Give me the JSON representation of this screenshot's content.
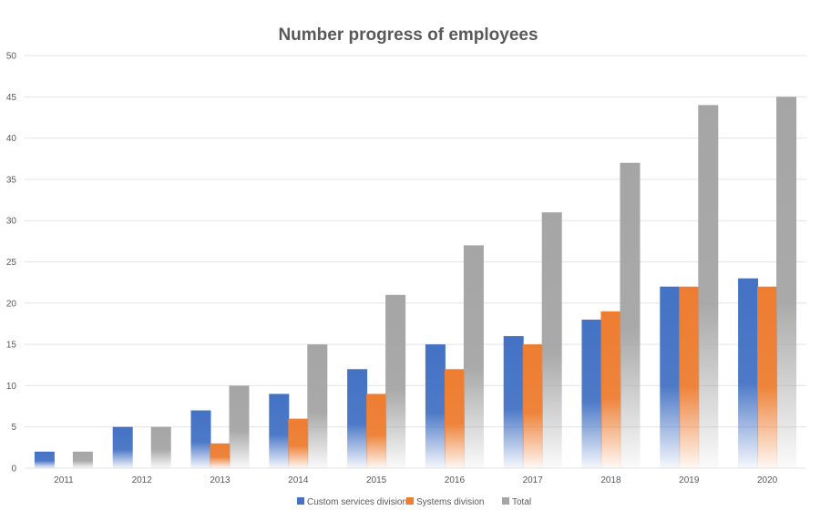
{
  "chart_data": {
    "type": "bar",
    "title": "Number progress of employees",
    "xlabel": "",
    "ylabel": "",
    "categories": [
      "2011",
      "2012",
      "2013",
      "2014",
      "2015",
      "2016",
      "2017",
      "2018",
      "2019",
      "2020"
    ],
    "series": [
      {
        "name": "Custom services division",
        "color": "#4472C4",
        "values": [
          2,
          5,
          7,
          9,
          12,
          15,
          16,
          18,
          22,
          23
        ]
      },
      {
        "name": "Systems division",
        "color": "#ED7D31",
        "values": [
          0,
          0,
          3,
          6,
          9,
          12,
          15,
          19,
          22,
          22
        ]
      },
      {
        "name": "Total",
        "color": "#A5A5A5",
        "values": [
          2,
          5,
          10,
          15,
          21,
          27,
          31,
          37,
          44,
          45
        ]
      }
    ],
    "ylim": [
      0,
      50
    ],
    "yticks": [
      "0",
      "5",
      "10",
      "15",
      "20",
      "25",
      "30",
      "35",
      "40",
      "45",
      "50"
    ],
    "grid": true,
    "legend_position": "bottom",
    "fill_style": "gradient"
  }
}
